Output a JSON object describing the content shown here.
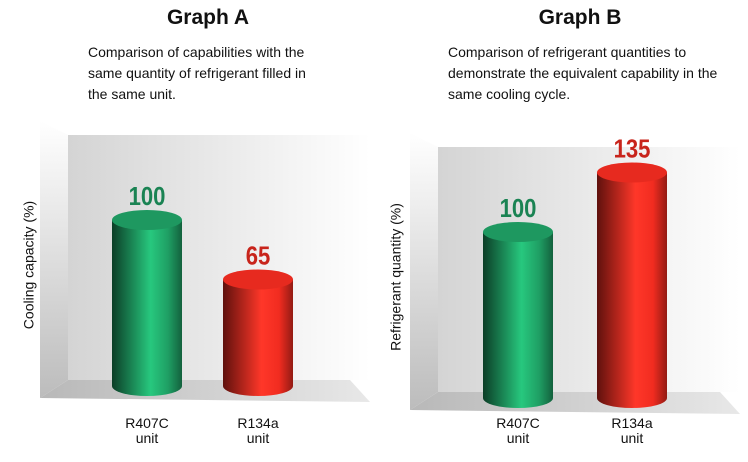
{
  "chart_data": [
    {
      "type": "bar",
      "title": "Graph A",
      "subtitle": "Comparison of capabilities with the same quantity of refrigerant filled in the same unit.",
      "y_label": "Cooling capacity (%)",
      "categories": [
        "R407C unit",
        "R134a unit"
      ],
      "values": [
        100,
        65
      ],
      "colors": [
        "#1b8a57",
        "#d2261c"
      ],
      "ylim": [
        0,
        150
      ]
    },
    {
      "type": "bar",
      "title": "Graph B",
      "subtitle": "Comparison of refrigerant quantities to demonstrate the equivalent capability in the same cooling cycle.",
      "y_label": "Refrigerant quantity (%)",
      "categories": [
        "R407C unit",
        "R134a unit"
      ],
      "values": [
        100,
        135
      ],
      "colors": [
        "#1b8a57",
        "#d2261c"
      ],
      "ylim": [
        0,
        150
      ]
    }
  ]
}
